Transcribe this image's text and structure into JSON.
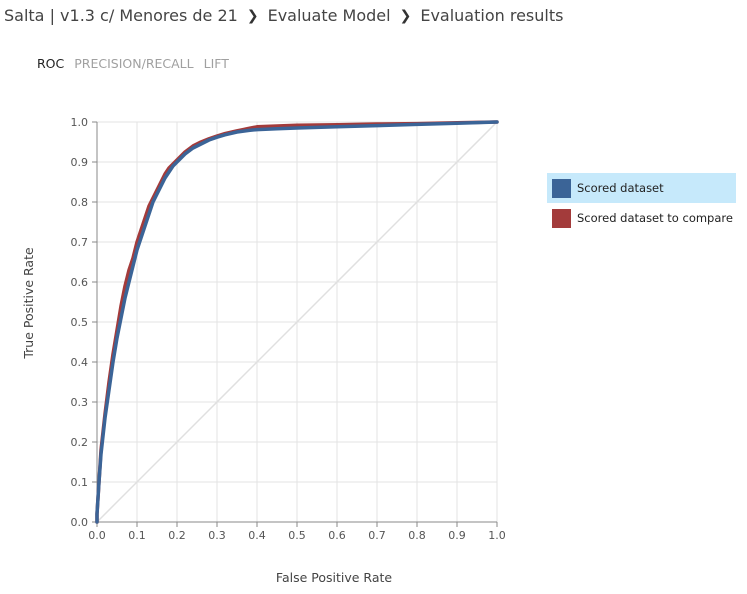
{
  "breadcrumb": {
    "items": [
      "Salta | v1.3 c/ Menores de 21",
      "Evaluate Model",
      "Evaluation results"
    ],
    "separator": "❯"
  },
  "tabs": [
    {
      "label": "ROC",
      "active": true
    },
    {
      "label": "PRECISION/RECALL",
      "active": false
    },
    {
      "label": "LIFT",
      "active": false
    }
  ],
  "legend": {
    "items": [
      {
        "label": "Scored dataset",
        "color": "#3b6497",
        "selected": true
      },
      {
        "label": "Scored dataset to compare",
        "color": "#a33b3b",
        "selected": false
      }
    ]
  },
  "chart_data": {
    "type": "line",
    "title": "",
    "xlabel": "False Positive Rate",
    "ylabel": "True Positive Rate",
    "xlim": [
      0,
      1
    ],
    "ylim": [
      0,
      1
    ],
    "xticks": [
      "0.0",
      "0.1",
      "0.2",
      "0.3",
      "0.4",
      "0.5",
      "0.6",
      "0.7",
      "0.8",
      "0.9",
      "1.0"
    ],
    "yticks": [
      "0.0",
      "0.1",
      "0.2",
      "0.3",
      "0.4",
      "0.5",
      "0.6",
      "0.7",
      "0.8",
      "0.9",
      "1.0"
    ],
    "grid": true,
    "legend_position": "right",
    "reference_line": {
      "x": [
        0,
        1
      ],
      "y": [
        0,
        1
      ],
      "color": "#e0e0e0"
    },
    "series": [
      {
        "name": "Scored dataset",
        "color": "#3b6497",
        "x": [
          0.0,
          0.0,
          0.005,
          0.01,
          0.02,
          0.03,
          0.04,
          0.05,
          0.06,
          0.07,
          0.08,
          0.09,
          0.1,
          0.11,
          0.12,
          0.13,
          0.14,
          0.15,
          0.16,
          0.17,
          0.18,
          0.19,
          0.2,
          0.22,
          0.24,
          0.26,
          0.28,
          0.3,
          0.32,
          0.35,
          0.38,
          0.4,
          0.45,
          0.5,
          0.6,
          0.7,
          0.8,
          0.9,
          1.0
        ],
        "y": [
          0.0,
          0.02,
          0.1,
          0.17,
          0.26,
          0.33,
          0.4,
          0.46,
          0.51,
          0.56,
          0.6,
          0.64,
          0.68,
          0.71,
          0.74,
          0.77,
          0.8,
          0.82,
          0.84,
          0.86,
          0.875,
          0.89,
          0.9,
          0.92,
          0.935,
          0.945,
          0.955,
          0.962,
          0.968,
          0.975,
          0.979,
          0.981,
          0.983,
          0.985,
          0.988,
          0.991,
          0.994,
          0.997,
          1.0
        ]
      },
      {
        "name": "Scored dataset to compare",
        "color": "#a33b3b",
        "x": [
          0.0,
          0.0,
          0.005,
          0.01,
          0.02,
          0.03,
          0.04,
          0.05,
          0.06,
          0.07,
          0.08,
          0.09,
          0.1,
          0.11,
          0.12,
          0.13,
          0.14,
          0.15,
          0.16,
          0.17,
          0.18,
          0.19,
          0.2,
          0.22,
          0.24,
          0.26,
          0.28,
          0.3,
          0.32,
          0.35,
          0.38,
          0.4,
          0.45,
          0.5,
          0.6,
          0.7,
          0.8,
          0.9,
          1.0
        ],
        "y": [
          0.0,
          0.02,
          0.1,
          0.18,
          0.27,
          0.35,
          0.42,
          0.48,
          0.54,
          0.59,
          0.63,
          0.66,
          0.7,
          0.73,
          0.76,
          0.79,
          0.81,
          0.83,
          0.85,
          0.87,
          0.885,
          0.895,
          0.905,
          0.925,
          0.94,
          0.95,
          0.958,
          0.965,
          0.971,
          0.978,
          0.984,
          0.988,
          0.99,
          0.992,
          0.993,
          0.995,
          0.996,
          0.998,
          1.0
        ]
      }
    ]
  }
}
